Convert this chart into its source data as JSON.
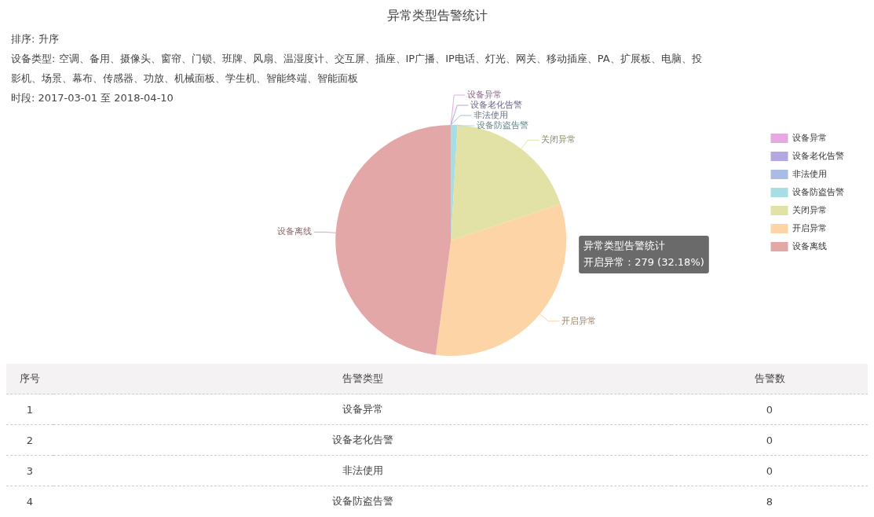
{
  "chart_data": {
    "type": "pie",
    "title": "异常类型告警统计",
    "subtitle": "排序: 升序",
    "categories": [
      "设备异常",
      "设备老化告警",
      "非法使用",
      "设备防盗告警",
      "关闭异常",
      "开启异常",
      "设备离线"
    ],
    "values": [
      0,
      0,
      0,
      0.92,
      19,
      32.18,
      47.9
    ],
    "colors": [
      "#e5a8e0",
      "#b5a8e0",
      "#a8bce6",
      "#a8dde3",
      "#e3e2a6",
      "#fdd4a6",
      "#e3a7a7"
    ],
    "annotations": [
      "设备类型: 空调、备用、摄像头、窗帘、门锁、班牌、风扇、温湿度计、交互屏、插座、IP广播、IP电话、灯光、网关、移动插座、PA、扩展板、电脑、投影机、场景、幕布、传感器、功放、机械面板、学生机、智能终端、智能面板",
      "时段: 2017-03-01 至 2018-04-10",
      "异常类型告警统计",
      "开启异常：279 (32.18%)",
      "序号",
      "告警类型",
      "告警数",
      "1",
      "设备异常",
      "0",
      "2",
      "设备老化告警",
      "0",
      "3",
      "非法使用",
      "0",
      "4",
      "设备防盗告警",
      "8"
    ],
    "legend": "top right"
  }
}
